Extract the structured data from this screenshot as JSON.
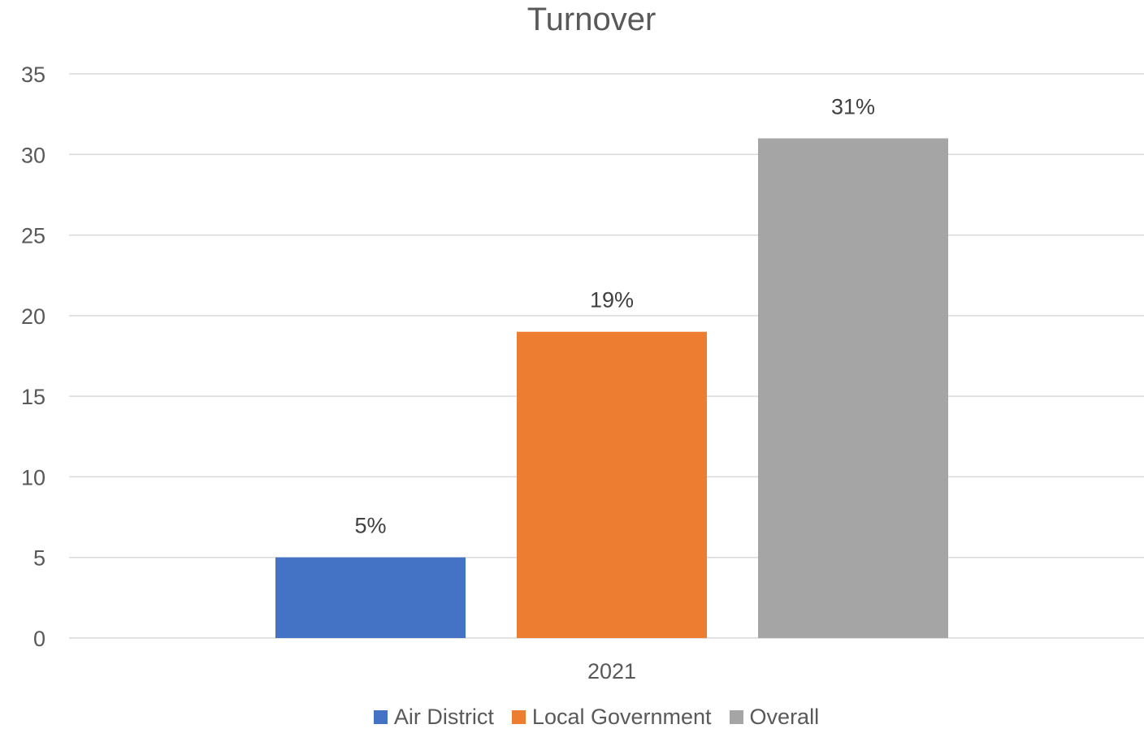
{
  "chart_data": {
    "type": "bar",
    "title": "Turnover",
    "categories": [
      "2021"
    ],
    "series": [
      {
        "name": "Air District",
        "values": [
          5
        ],
        "label": "5%",
        "color": "#4472C4"
      },
      {
        "name": "Local Government",
        "values": [
          19
        ],
        "label": "19%",
        "color": "#ED7D31"
      },
      {
        "name": "Overall",
        "values": [
          31
        ],
        "label": "31%",
        "color": "#A5A5A5"
      }
    ],
    "yticks": [
      "0",
      "5",
      "10",
      "15",
      "20",
      "25",
      "30",
      "35"
    ],
    "ylim": [
      0,
      35
    ],
    "grid": true,
    "legend_position": "bottom"
  }
}
